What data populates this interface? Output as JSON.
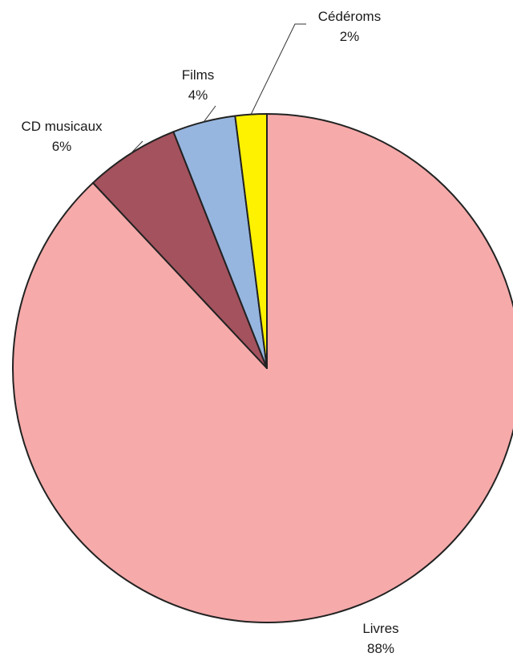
{
  "chart_data": {
    "type": "pie",
    "title": "",
    "slices": [
      {
        "label": "Livres",
        "value": 88,
        "percent_label": "88%",
        "color": "#F6AAAA"
      },
      {
        "label": "CD musicaux",
        "value": 6,
        "percent_label": "6%",
        "color": "#A4525E"
      },
      {
        "label": "Films",
        "value": 4,
        "percent_label": "4%",
        "color": "#96B6E0"
      },
      {
        "label": "Cédéroms",
        "value": 2,
        "percent_label": "2%",
        "color": "#FFF200"
      }
    ],
    "start_angle_deg": 0,
    "direction": "counterclockwise",
    "outline_color": "#222222",
    "legend": "none",
    "data_labels": "outside with leader lines"
  }
}
